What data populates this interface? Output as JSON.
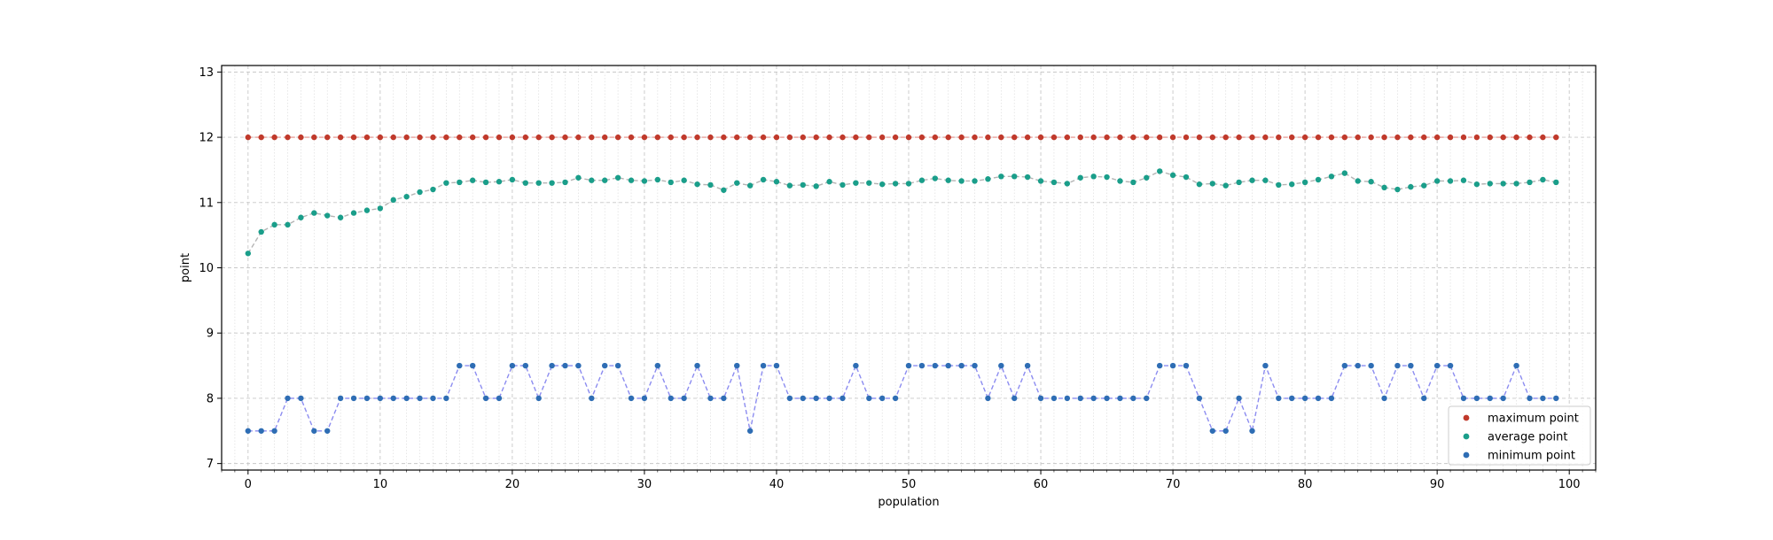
{
  "chart_data": {
    "type": "line",
    "title": "",
    "xlabel": "population",
    "ylabel": "point",
    "xlim": [
      -2,
      102
    ],
    "ylim": [
      6.9,
      13.1
    ],
    "xticks": [
      0,
      10,
      20,
      30,
      40,
      50,
      60,
      70,
      80,
      90,
      100
    ],
    "yticks": [
      7,
      8,
      9,
      10,
      11,
      12,
      13
    ],
    "grid": true,
    "legend_position": "lower-right",
    "x": [
      0,
      1,
      2,
      3,
      4,
      5,
      6,
      7,
      8,
      9,
      10,
      11,
      12,
      13,
      14,
      15,
      16,
      17,
      18,
      19,
      20,
      21,
      22,
      23,
      24,
      25,
      26,
      27,
      28,
      29,
      30,
      31,
      32,
      33,
      34,
      35,
      36,
      37,
      38,
      39,
      40,
      41,
      42,
      43,
      44,
      45,
      46,
      47,
      48,
      49,
      50,
      51,
      52,
      53,
      54,
      55,
      56,
      57,
      58,
      59,
      60,
      61,
      62,
      63,
      64,
      65,
      66,
      67,
      68,
      69,
      70,
      71,
      72,
      73,
      74,
      75,
      76,
      77,
      78,
      79,
      80,
      81,
      82,
      83,
      84,
      85,
      86,
      87,
      88,
      89,
      90,
      91,
      92,
      93,
      94,
      95,
      96,
      97,
      98,
      99
    ],
    "series": [
      {
        "name": "maximum point",
        "color": "#c0392b",
        "line_color": "#e8a19a",
        "values": [
          12,
          12,
          12,
          12,
          12,
          12,
          12,
          12,
          12,
          12,
          12,
          12,
          12,
          12,
          12,
          12,
          12,
          12,
          12,
          12,
          12,
          12,
          12,
          12,
          12,
          12,
          12,
          12,
          12,
          12,
          12,
          12,
          12,
          12,
          12,
          12,
          12,
          12,
          12,
          12,
          12,
          12,
          12,
          12,
          12,
          12,
          12,
          12,
          12,
          12,
          12,
          12,
          12,
          12,
          12,
          12,
          12,
          12,
          12,
          12,
          12,
          12,
          12,
          12,
          12,
          12,
          12,
          12,
          12,
          12,
          12,
          12,
          12,
          12,
          12,
          12,
          12,
          12,
          12,
          12,
          12,
          12,
          12,
          12,
          12,
          12,
          12,
          12,
          12,
          12,
          12,
          12,
          12,
          12,
          12,
          12,
          12,
          12,
          12,
          12
        ]
      },
      {
        "name": "average point",
        "color": "#1a9e8a",
        "line_color": "#b4b4b4",
        "values": [
          10.22,
          10.55,
          10.66,
          10.66,
          10.77,
          10.84,
          10.8,
          10.77,
          10.84,
          10.88,
          10.91,
          11.04,
          11.09,
          11.16,
          11.2,
          11.3,
          11.31,
          11.34,
          11.31,
          11.32,
          11.35,
          11.3,
          11.3,
          11.3,
          11.31,
          11.38,
          11.34,
          11.34,
          11.38,
          11.34,
          11.33,
          11.35,
          11.31,
          11.34,
          11.28,
          11.27,
          11.19,
          11.3,
          11.26,
          11.35,
          11.32,
          11.26,
          11.27,
          11.25,
          11.32,
          11.27,
          11.3,
          11.3,
          11.28,
          11.29,
          11.29,
          11.34,
          11.37,
          11.34,
          11.33,
          11.33,
          11.36,
          11.4,
          11.4,
          11.39,
          11.33,
          11.31,
          11.29,
          11.38,
          11.4,
          11.39,
          11.33,
          11.31,
          11.38,
          11.48,
          11.42,
          11.39,
          11.28,
          11.29,
          11.26,
          11.31,
          11.34,
          11.34,
          11.27,
          11.28,
          11.31,
          11.35,
          11.4,
          11.45,
          11.33,
          11.32,
          11.23,
          11.2,
          11.24,
          11.26,
          11.33,
          11.33,
          11.34,
          11.28,
          11.29,
          11.29,
          11.29,
          11.31,
          11.35,
          11.31
        ]
      },
      {
        "name": "minimum point",
        "color": "#2e6db4",
        "line_color": "#8c8cf0",
        "values": [
          7.5,
          7.5,
          7.5,
          8,
          8,
          7.5,
          7.5,
          8,
          8,
          8,
          8,
          8,
          8,
          8,
          8,
          8,
          8.5,
          8.5,
          8,
          8,
          8.5,
          8.5,
          8,
          8.5,
          8.5,
          8.5,
          8,
          8.5,
          8.5,
          8,
          8,
          8.5,
          8,
          8,
          8.5,
          8,
          8,
          8.5,
          7.5,
          8.5,
          8.5,
          8,
          8,
          8,
          8,
          8,
          8.5,
          8,
          8,
          8,
          8.5,
          8.5,
          8.5,
          8.5,
          8.5,
          8.5,
          8,
          8.5,
          8,
          8.5,
          8,
          8,
          8,
          8,
          8,
          8,
          8,
          8,
          8,
          8.5,
          8.5,
          8.5,
          8,
          7.5,
          7.5,
          8,
          7.5,
          8.5,
          8,
          8,
          8,
          8,
          8,
          8.5,
          8.5,
          8.5,
          8,
          8.5,
          8.5,
          8,
          8.5,
          8.5,
          8,
          8,
          8,
          8,
          8.5,
          8,
          8,
          8
        ]
      }
    ]
  }
}
